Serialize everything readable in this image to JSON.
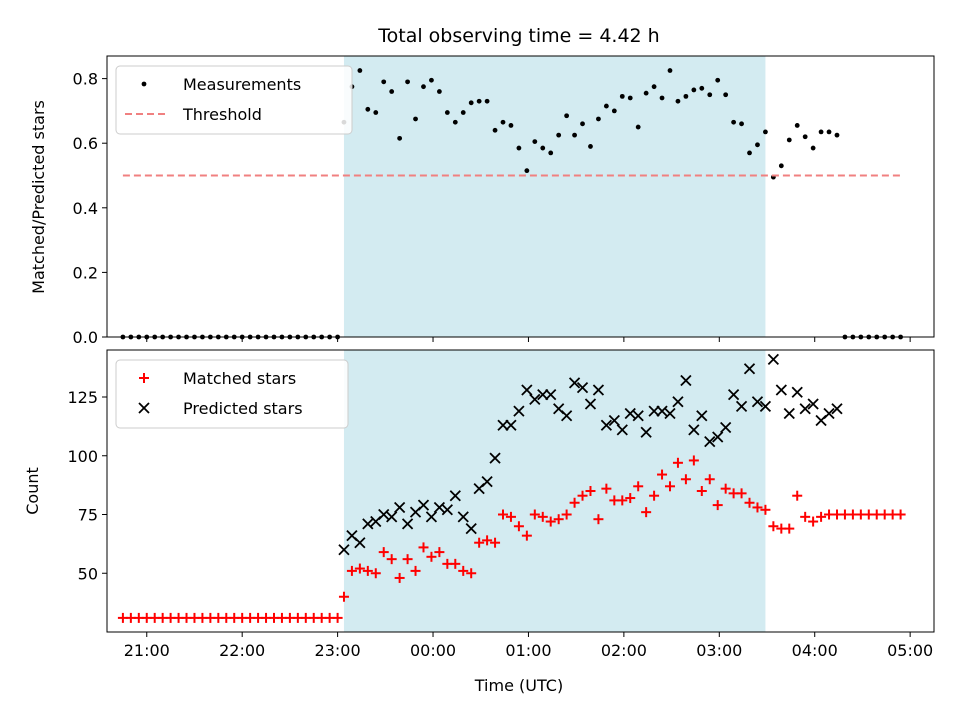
{
  "chart_data": [
    {
      "type": "scatter",
      "title": "Total observing time = 4.42 h",
      "xlabel": "",
      "ylabel": "Matched/Predicted stars",
      "ylim": [
        0,
        0.87
      ],
      "xlim": [
        "20:35",
        "05:15"
      ],
      "yticks": [
        0.0,
        0.2,
        0.4,
        0.6,
        0.8
      ],
      "ytick_labels": [
        "0.0",
        "0.2",
        "0.4",
        "0.6",
        "0.8"
      ],
      "shaded_interval": [
        "23:04",
        "03:29"
      ],
      "shade_color": "#d3ebf1",
      "legend_position": "upper-left",
      "series": [
        {
          "name": "Measurements",
          "marker": "dot",
          "color": "#000000",
          "x": [
            "20:45",
            "20:50",
            "20:55",
            "21:00",
            "21:05",
            "21:10",
            "21:15",
            "21:20",
            "21:25",
            "21:30",
            "21:35",
            "21:40",
            "21:45",
            "21:50",
            "21:55",
            "22:00",
            "22:05",
            "22:10",
            "22:15",
            "22:20",
            "22:25",
            "22:30",
            "22:35",
            "22:40",
            "22:45",
            "22:50",
            "22:55",
            "23:00",
            "23:04",
            "23:09",
            "23:14",
            "23:19",
            "23:24",
            "23:29",
            "23:34",
            "23:39",
            "23:44",
            "23:49",
            "23:54",
            "23:59",
            "00:04",
            "00:09",
            "00:14",
            "00:19",
            "00:24",
            "00:29",
            "00:34",
            "00:39",
            "00:44",
            "00:49",
            "00:54",
            "00:59",
            "01:04",
            "01:09",
            "01:14",
            "01:19",
            "01:24",
            "01:29",
            "01:34",
            "01:39",
            "01:44",
            "01:49",
            "01:54",
            "01:59",
            "02:04",
            "02:09",
            "02:14",
            "02:19",
            "02:24",
            "02:29",
            "02:34",
            "02:39",
            "02:44",
            "02:49",
            "02:54",
            "02:59",
            "03:04",
            "03:09",
            "03:14",
            "03:19",
            "03:24",
            "03:29",
            "03:34",
            "03:39",
            "03:44",
            "03:49",
            "03:54",
            "03:59",
            "04:04",
            "04:09",
            "04:14",
            "04:19",
            "04:24",
            "04:29",
            "04:34",
            "04:39",
            "04:44",
            "04:49",
            "04:54"
          ],
          "y": [
            0,
            0,
            0,
            0,
            0,
            0,
            0,
            0,
            0,
            0,
            0,
            0,
            0,
            0,
            0,
            0,
            0,
            0,
            0,
            0,
            0,
            0,
            0,
            0,
            0,
            0,
            0,
            0,
            0.665,
            0.775,
            0.825,
            0.705,
            0.695,
            0.79,
            0.76,
            0.615,
            0.79,
            0.675,
            0.775,
            0.795,
            0.76,
            0.695,
            0.665,
            0.695,
            0.725,
            0.73,
            0.73,
            0.64,
            0.665,
            0.655,
            0.585,
            0.515,
            0.605,
            0.585,
            0.57,
            0.625,
            0.685,
            0.625,
            0.66,
            0.59,
            0.675,
            0.715,
            0.7,
            0.745,
            0.74,
            0.65,
            0.755,
            0.775,
            0.74,
            0.825,
            0.73,
            0.745,
            0.765,
            0.77,
            0.75,
            0.795,
            0.75,
            0.665,
            0.66,
            0.57,
            0.595,
            0.635,
            0.495,
            0.53,
            0.61,
            0.655,
            0.62,
            0.585,
            0.635,
            0.635,
            0.625,
            0,
            0,
            0,
            0,
            0,
            0,
            0,
            0
          ]
        },
        {
          "name": "Threshold",
          "type": "line",
          "style": "dashed",
          "color": "#f08080",
          "x": [
            "20:45",
            "04:54"
          ],
          "y": [
            0.5,
            0.5
          ]
        }
      ]
    },
    {
      "type": "scatter",
      "title": "",
      "xlabel": "Time (UTC)",
      "ylabel": "Count",
      "ylim": [
        25,
        145
      ],
      "xlim": [
        "20:35",
        "05:15"
      ],
      "xtick_labels": [
        "21:00",
        "22:00",
        "23:00",
        "00:00",
        "01:00",
        "02:00",
        "03:00",
        "04:00",
        "05:00"
      ],
      "yticks": [
        50,
        75,
        100,
        125
      ],
      "ytick_labels": [
        "50",
        "75",
        "100",
        "125"
      ],
      "shaded_interval": [
        "23:04",
        "03:29"
      ],
      "shade_color": "#d3ebf1",
      "legend_position": "upper-left",
      "series": [
        {
          "name": "Matched stars",
          "marker": "plus",
          "color": "#ff0000",
          "x": [
            "20:45",
            "20:50",
            "20:55",
            "21:00",
            "21:05",
            "21:10",
            "21:15",
            "21:20",
            "21:25",
            "21:30",
            "21:35",
            "21:40",
            "21:45",
            "21:50",
            "21:55",
            "22:00",
            "22:05",
            "22:10",
            "22:15",
            "22:20",
            "22:25",
            "22:30",
            "22:35",
            "22:40",
            "22:45",
            "22:50",
            "22:55",
            "23:00",
            "23:04",
            "23:09",
            "23:14",
            "23:19",
            "23:24",
            "23:29",
            "23:34",
            "23:39",
            "23:44",
            "23:49",
            "23:54",
            "23:59",
            "00:04",
            "00:09",
            "00:14",
            "00:19",
            "00:24",
            "00:29",
            "00:34",
            "00:39",
            "00:44",
            "00:49",
            "00:54",
            "00:59",
            "01:04",
            "01:09",
            "01:14",
            "01:19",
            "01:24",
            "01:29",
            "01:34",
            "01:39",
            "01:44",
            "01:49",
            "01:54",
            "01:59",
            "02:04",
            "02:09",
            "02:14",
            "02:19",
            "02:24",
            "02:29",
            "02:34",
            "02:39",
            "02:44",
            "02:49",
            "02:54",
            "02:59",
            "03:04",
            "03:09",
            "03:14",
            "03:19",
            "03:24",
            "03:29",
            "03:34",
            "03:39",
            "03:44",
            "03:49",
            "03:54",
            "03:59",
            "04:04",
            "04:09",
            "04:14",
            "04:19",
            "04:24",
            "04:29",
            "04:34",
            "04:39",
            "04:44",
            "04:49",
            "04:54"
          ],
          "y": [
            31,
            31,
            31,
            31,
            31,
            31,
            31,
            31,
            31,
            31,
            31,
            31,
            31,
            31,
            31,
            31,
            31,
            31,
            31,
            31,
            31,
            31,
            31,
            31,
            31,
            31,
            31,
            31,
            40,
            51,
            52,
            51,
            50,
            59,
            56,
            48,
            56,
            51,
            61,
            57,
            59,
            54,
            54,
            51,
            50,
            63,
            64,
            63,
            75,
            74,
            70,
            66,
            75,
            74,
            72,
            73,
            75,
            80,
            83,
            85,
            73,
            86,
            81,
            81,
            82,
            87,
            76,
            83,
            92,
            87,
            97,
            90,
            98,
            85,
            90,
            79,
            86,
            84,
            84,
            80,
            78,
            77,
            70,
            69,
            69,
            83,
            74,
            72,
            74,
            75,
            75,
            75,
            75,
            75,
            75,
            75,
            75,
            75,
            75
          ]
        },
        {
          "name": "Predicted stars",
          "marker": "x",
          "color": "#000000",
          "x": [
            "23:04",
            "23:09",
            "23:14",
            "23:19",
            "23:24",
            "23:29",
            "23:34",
            "23:39",
            "23:44",
            "23:49",
            "23:54",
            "23:59",
            "00:04",
            "00:09",
            "00:14",
            "00:19",
            "00:24",
            "00:29",
            "00:34",
            "00:39",
            "00:44",
            "00:49",
            "00:54",
            "00:59",
            "01:04",
            "01:09",
            "01:14",
            "01:19",
            "01:24",
            "01:29",
            "01:34",
            "01:39",
            "01:44",
            "01:49",
            "01:54",
            "01:59",
            "02:04",
            "02:09",
            "02:14",
            "02:19",
            "02:24",
            "02:29",
            "02:34",
            "02:39",
            "02:44",
            "02:49",
            "02:54",
            "02:59",
            "03:04",
            "03:09",
            "03:14",
            "03:19",
            "03:24",
            "03:29",
            "03:34",
            "03:39",
            "03:44",
            "03:49",
            "03:54",
            "03:59",
            "04:04",
            "04:09",
            "04:14"
          ],
          "y": [
            60,
            66,
            63,
            71,
            72,
            75,
            74,
            78,
            71,
            76,
            79,
            74,
            78,
            77,
            83,
            74,
            69,
            86,
            89,
            99,
            113,
            113,
            119,
            128,
            124,
            126,
            126,
            120,
            117,
            131,
            129,
            122,
            128,
            113,
            115,
            111,
            118,
            117,
            110,
            119,
            119,
            118,
            123,
            132,
            111,
            117,
            106,
            108,
            112,
            126,
            121,
            137,
            123,
            121,
            141,
            128,
            118,
            127,
            120,
            122,
            115,
            118,
            120
          ]
        }
      ]
    }
  ]
}
